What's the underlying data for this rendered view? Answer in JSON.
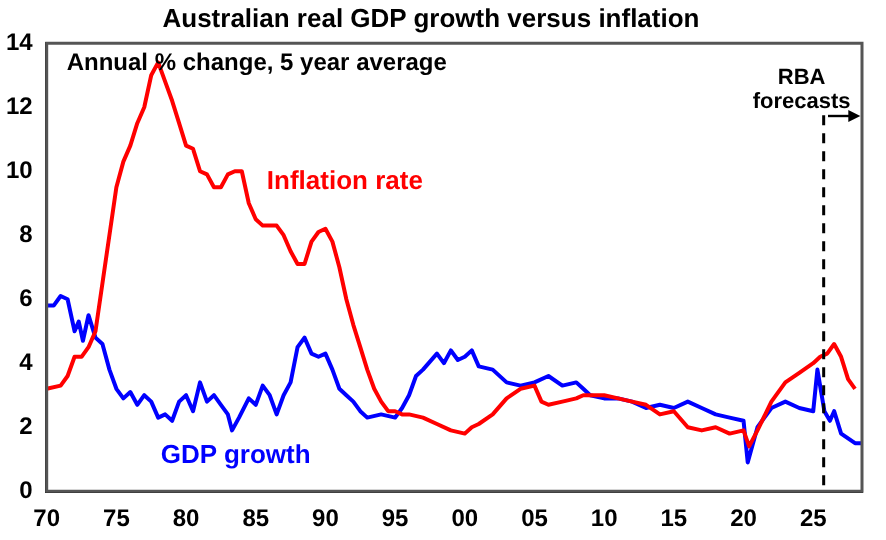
{
  "chart_data": {
    "type": "line",
    "title": "Australian real GDP growth versus inflation",
    "subtitle": "Annual % change, 5 year average",
    "xlim": [
      1970,
      2028.5
    ],
    "xticks": [
      {
        "value": 1970,
        "label": "70"
      },
      {
        "value": 1975,
        "label": "75"
      },
      {
        "value": 1980,
        "label": "80"
      },
      {
        "value": 1985,
        "label": "85"
      },
      {
        "value": 1990,
        "label": "90"
      },
      {
        "value": 1995,
        "label": "95"
      },
      {
        "value": 2000,
        "label": "00"
      },
      {
        "value": 2005,
        "label": "05"
      },
      {
        "value": 2010,
        "label": "10"
      },
      {
        "value": 2015,
        "label": "15"
      },
      {
        "value": 2020,
        "label": "20"
      },
      {
        "value": 2025,
        "label": "25"
      }
    ],
    "ylim": [
      0,
      14
    ],
    "yticks": [
      0,
      2,
      4,
      6,
      8,
      10,
      12,
      14
    ],
    "grid": false,
    "legend": false,
    "marker": "none",
    "line_style": "solid",
    "ref_lines": [
      {
        "axis": "x",
        "value": 2025.75,
        "label": "RBA forecasts",
        "line_style": "dashed",
        "color": "#000000"
      }
    ],
    "series": [
      {
        "name": "Inflation rate",
        "color": "#ff0000",
        "x": [
          1970,
          1971,
          1971.5,
          1972,
          1972.5,
          1973,
          1973.5,
          1974,
          1974.5,
          1975,
          1975.5,
          1976,
          1976.5,
          1977,
          1977.5,
          1978,
          1978.5,
          1979,
          1979.5,
          1980,
          1980.5,
          1981,
          1981.5,
          1982,
          1982.5,
          1983,
          1983.5,
          1984,
          1984.5,
          1985,
          1985.5,
          1986,
          1986.5,
          1987,
          1987.5,
          1988,
          1988.5,
          1989,
          1989.5,
          1990,
          1990.5,
          1991,
          1991.5,
          1992,
          1992.5,
          1993,
          1993.5,
          1994,
          1994.5,
          1995,
          1995.5,
          1996,
          1997,
          1998,
          1999,
          2000,
          2000.5,
          2001,
          2002,
          2003,
          2004,
          2005,
          2005.5,
          2006,
          2007,
          2008,
          2008.5,
          2010,
          2011,
          2012,
          2013,
          2014,
          2015,
          2016,
          2017,
          2018,
          2019,
          2020,
          2020.4,
          2021,
          2022,
          2023,
          2024,
          2025,
          2025.5,
          2026,
          2026.5,
          2027,
          2027.5,
          2028
        ],
        "values": [
          3.2,
          3.3,
          3.6,
          4.2,
          4.2,
          4.5,
          5.0,
          6.5,
          8.0,
          9.5,
          10.3,
          10.8,
          11.5,
          12.0,
          13.0,
          13.4,
          12.8,
          12.2,
          11.5,
          10.8,
          10.7,
          10.0,
          9.9,
          9.5,
          9.5,
          9.9,
          10.0,
          10.0,
          9.0,
          8.5,
          8.3,
          8.3,
          8.3,
          8.0,
          7.5,
          7.1,
          7.1,
          7.8,
          8.1,
          8.2,
          7.8,
          7.0,
          6.0,
          5.2,
          4.5,
          3.8,
          3.2,
          2.8,
          2.5,
          2.5,
          2.4,
          2.4,
          2.3,
          2.1,
          1.9,
          1.8,
          2.0,
          2.1,
          2.4,
          2.9,
          3.2,
          3.3,
          2.8,
          2.7,
          2.8,
          2.9,
          3.0,
          3.0,
          2.9,
          2.8,
          2.7,
          2.4,
          2.5,
          2.0,
          1.9,
          2.0,
          1.8,
          1.9,
          1.4,
          1.9,
          2.8,
          3.4,
          3.7,
          4.0,
          4.2,
          4.3,
          4.6,
          4.2,
          3.5,
          3.2
        ]
      },
      {
        "name": "GDP growth",
        "color": "#0000ff",
        "x": [
          1970,
          1970.5,
          1971,
          1971.5,
          1972,
          1972.3,
          1972.6,
          1973,
          1973.5,
          1974,
          1974.5,
          1975,
          1975.5,
          1976,
          1976.5,
          1977,
          1977.5,
          1978,
          1978.5,
          1979,
          1979.5,
          1980,
          1980.5,
          1981,
          1981.5,
          1982,
          1982.5,
          1983,
          1983.3,
          1983.8,
          1984.5,
          1985,
          1985.5,
          1986,
          1986.5,
          1987,
          1987.5,
          1988,
          1988.5,
          1989,
          1989.5,
          1990,
          1990.5,
          1991,
          1991.5,
          1992,
          1992.5,
          1993,
          1994,
          1995,
          1995.5,
          1996,
          1996.5,
          1997,
          1998,
          1998.5,
          1999,
          1999.5,
          2000,
          2000.5,
          2001,
          2002,
          2003,
          2004,
          2005,
          2006,
          2007,
          2008,
          2008.5,
          2009,
          2010,
          2011,
          2012,
          2013,
          2014,
          2015,
          2016,
          2017,
          2018,
          2019,
          2020,
          2020.3,
          2021,
          2022,
          2023,
          2024,
          2025,
          2025.3,
          2025.8,
          2026.2,
          2026.5,
          2027,
          2028,
          2028.5
        ],
        "values": [
          5.8,
          5.8,
          6.1,
          6.0,
          5.0,
          5.3,
          4.7,
          5.5,
          4.8,
          4.6,
          3.8,
          3.2,
          2.9,
          3.1,
          2.7,
          3.0,
          2.8,
          2.3,
          2.4,
          2.2,
          2.8,
          3.0,
          2.5,
          3.4,
          2.8,
          3.0,
          2.7,
          2.4,
          1.9,
          2.3,
          2.9,
          2.7,
          3.3,
          3.0,
          2.4,
          3.0,
          3.4,
          4.5,
          4.8,
          4.3,
          4.2,
          4.3,
          3.8,
          3.2,
          3.0,
          2.8,
          2.5,
          2.3,
          2.4,
          2.3,
          2.6,
          3.0,
          3.6,
          3.8,
          4.3,
          4.0,
          4.4,
          4.1,
          4.2,
          4.4,
          3.9,
          3.8,
          3.4,
          3.3,
          3.4,
          3.6,
          3.3,
          3.4,
          3.2,
          3.0,
          2.9,
          2.9,
          2.8,
          2.6,
          2.7,
          2.6,
          2.8,
          2.6,
          2.4,
          2.3,
          2.2,
          0.9,
          2.0,
          2.6,
          2.8,
          2.6,
          2.5,
          3.8,
          2.5,
          2.2,
          2.5,
          1.8,
          1.5,
          1.5
        ]
      }
    ]
  }
}
